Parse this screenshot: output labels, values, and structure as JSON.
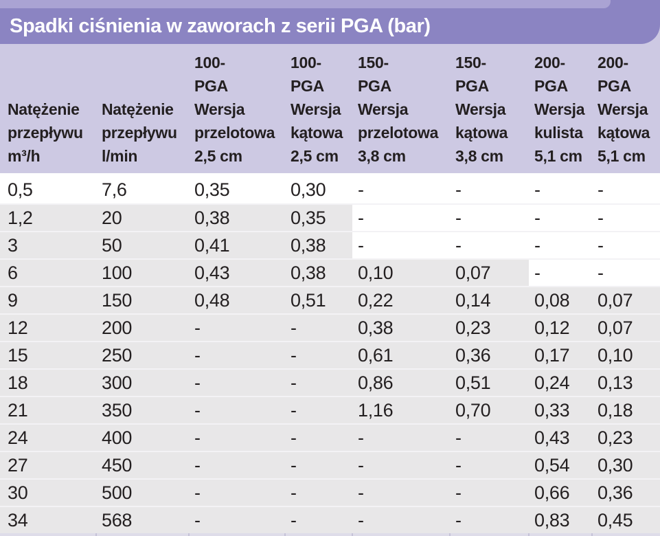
{
  "title": "Spadki ciśnienia w zaworach z serii PGA (bar)",
  "table": {
    "headers": [
      {
        "name": "flow-m3h",
        "lines": [
          "Natężenie",
          "przepływu",
          "m³/h"
        ]
      },
      {
        "name": "flow-lmin",
        "lines": [
          "Natężenie",
          "przepływu",
          "l/min"
        ]
      },
      {
        "name": "100-pga-przelotowa",
        "lines": [
          "100-",
          "PGA",
          "Wersja",
          "przelotowa",
          "2,5 cm"
        ]
      },
      {
        "name": "100-pga-katowa",
        "lines": [
          "100-",
          "PGA",
          "Wersja",
          "kątowa",
          "2,5 cm"
        ]
      },
      {
        "name": "150-pga-przelotowa",
        "lines": [
          "150-",
          "PGA",
          "Wersja",
          "przelotowa",
          "3,8 cm"
        ]
      },
      {
        "name": "150-pga-katowa",
        "lines": [
          "150-",
          "PGA",
          "Wersja",
          "kątowa",
          "3,8 cm"
        ]
      },
      {
        "name": "200-pga-kulista",
        "lines": [
          "200-",
          "PGA",
          "Wersja",
          "kulista",
          "5,1 cm"
        ]
      },
      {
        "name": "200-pga-katowa",
        "lines": [
          "200-",
          "PGA",
          "Wersja",
          "kątowa",
          "5,1 cm"
        ]
      }
    ],
    "rows": [
      {
        "cells": [
          "0,5",
          "7,6",
          "0,35",
          "0,30",
          "-",
          "-",
          "-",
          "-"
        ],
        "gray_cols": 0
      },
      {
        "cells": [
          "1,2",
          "20",
          "0,38",
          "0,35",
          "-",
          "-",
          "-",
          "-"
        ],
        "gray_cols": 4
      },
      {
        "cells": [
          "3",
          "50",
          "0,41",
          "0,38",
          "-",
          "-",
          "-",
          "-"
        ],
        "gray_cols": 4
      },
      {
        "cells": [
          "6",
          "100",
          "0,43",
          "0,38",
          "0,10",
          "0,07",
          "-",
          "-"
        ],
        "gray_cols": 6
      },
      {
        "cells": [
          "9",
          "150",
          "0,48",
          "0,51",
          "0,22",
          "0,14",
          "0,08",
          "0,07"
        ],
        "gray_cols": 8
      },
      {
        "cells": [
          "12",
          "200",
          "-",
          "-",
          "0,38",
          "0,23",
          "0,12",
          "0,07"
        ],
        "gray_cols": 8
      },
      {
        "cells": [
          "15",
          "250",
          "-",
          "-",
          "0,61",
          "0,36",
          "0,17",
          "0,10"
        ],
        "gray_cols": 8
      },
      {
        "cells": [
          "18",
          "300",
          "-",
          "-",
          "0,86",
          "0,51",
          "0,24",
          "0,13"
        ],
        "gray_cols": 8
      },
      {
        "cells": [
          "21",
          "350",
          "-",
          "-",
          "1,16",
          "0,70",
          "0,33",
          "0,18"
        ],
        "gray_cols": 8
      },
      {
        "cells": [
          "24",
          "400",
          "-",
          "-",
          "-",
          "-",
          "0,43",
          "0,23"
        ],
        "gray_cols": 8
      },
      {
        "cells": [
          "27",
          "450",
          "-",
          "-",
          "-",
          "-",
          "0,54",
          "0,30"
        ],
        "gray_cols": 8
      },
      {
        "cells": [
          "30",
          "500",
          "-",
          "-",
          "-",
          "-",
          "0,66",
          "0,36"
        ],
        "gray_cols": 8
      },
      {
        "cells": [
          "34",
          "568",
          "-",
          "-",
          "-",
          "-",
          "0,83",
          "0,45"
        ],
        "gray_cols": 8
      }
    ]
  },
  "colors": {
    "title_bar": "#8b84c2",
    "top_strip": "#aaa3d3",
    "header_bg": "#cdc9e3",
    "row_gray": "#e8e7e8",
    "text": "#231f20",
    "title_text": "#ffffff"
  }
}
